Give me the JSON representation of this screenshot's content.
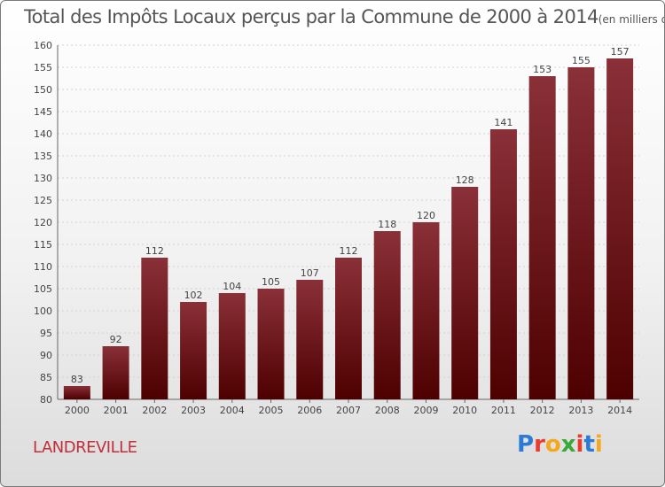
{
  "chart_data": {
    "type": "bar",
    "title": "Total des Impôts Locaux perçus par la Commune de 2000 à 2014",
    "unit": "(en milliers d'€)",
    "categories": [
      "2000",
      "2001",
      "2002",
      "2003",
      "2004",
      "2005",
      "2006",
      "2007",
      "2008",
      "2009",
      "2010",
      "2011",
      "2012",
      "2013",
      "2014"
    ],
    "values": [
      83,
      92,
      112,
      102,
      104,
      105,
      107,
      112,
      118,
      120,
      128,
      141,
      153,
      155,
      157
    ],
    "ylim": [
      80,
      160
    ],
    "yticks": [
      80,
      85,
      90,
      95,
      100,
      105,
      110,
      115,
      120,
      125,
      130,
      135,
      140,
      145,
      150,
      155,
      160
    ],
    "xlabel": "",
    "ylabel": "",
    "grid": true,
    "bar_color_top": "#8a3038",
    "bar_color_bottom": "#4e0000"
  },
  "commune": "LANDREVILLE",
  "logo": {
    "letters": [
      "P",
      "r",
      "o",
      "x",
      "i",
      "t",
      "i"
    ],
    "colors": [
      "#2b7bd6",
      "#e83c2f",
      "#f4a81e",
      "#3aa83a",
      "#e83c2f",
      "#2b7bd6",
      "#f4a81e"
    ]
  }
}
